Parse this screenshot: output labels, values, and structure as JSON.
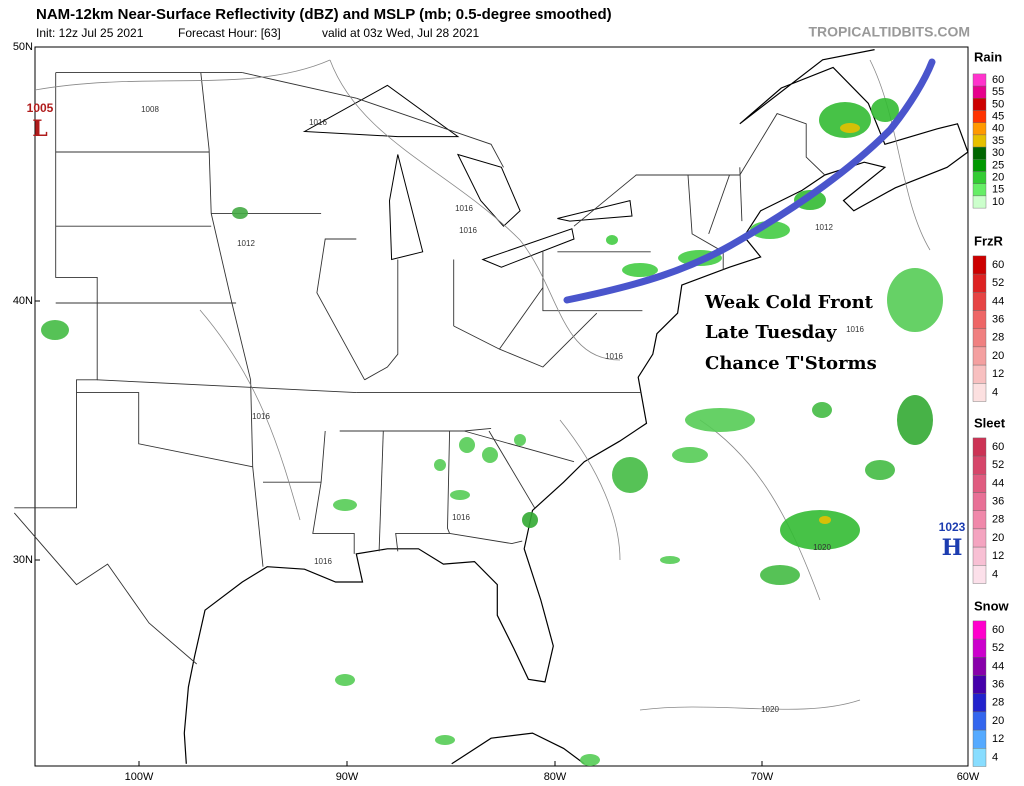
{
  "header": {
    "title": "NAM-12km Near-Surface Reflectivity (dBZ) and MSLP (mb; 0.5-degree smoothed)",
    "init": "Init: 12z Jul 25 2021",
    "forecast_hour": "Forecast Hour: [63]",
    "valid": "valid at 03z Wed, Jul 28 2021",
    "site": "TROPICALTIDBITS.COM"
  },
  "map": {
    "lat_labels": [
      "50N",
      "40N",
      "30N"
    ],
    "lon_labels": [
      "100W",
      "90W",
      "80W",
      "70W",
      "60W"
    ],
    "annotation": [
      "Weak Cold Front",
      "Late Tuesday",
      "Chance T'Storms"
    ],
    "low": {
      "pressure": "1005",
      "label": "L"
    },
    "high": {
      "pressure": "1023",
      "label": "H"
    },
    "isobar_labels": [
      "1008",
      "1016",
      "1012",
      "1016",
      "1016",
      "1016",
      "1016",
      "1016",
      "1016",
      "1012",
      "1016",
      "1020",
      "1020"
    ]
  },
  "legend": [
    {
      "title": "Rain",
      "values": [
        60,
        55,
        50,
        45,
        40,
        35,
        30,
        25,
        20,
        15,
        10
      ],
      "colors": [
        "#ff33cc",
        "#e6008c",
        "#cc0000",
        "#ff3300",
        "#ff9900",
        "#e6c000",
        "#006600",
        "#009900",
        "#33cc33",
        "#66ee66",
        "#ccffcc"
      ]
    },
    {
      "title": "FrzR",
      "values": [
        60,
        52,
        44,
        36,
        28,
        20,
        12,
        4
      ],
      "colors": [
        "#cc0000",
        "#dd2222",
        "#e64444",
        "#ee6666",
        "#f08080",
        "#f4a0a0",
        "#f8c0c0",
        "#fce0e0"
      ]
    },
    {
      "title": "Sleet",
      "values": [
        60,
        52,
        44,
        36,
        28,
        20,
        12,
        4
      ],
      "colors": [
        "#cc3355",
        "#d6466a",
        "#e05c80",
        "#e87096",
        "#f088aa",
        "#f4a4c0",
        "#f8c0d4",
        "#fce0ea"
      ]
    },
    {
      "title": "Snow",
      "values": [
        60,
        52,
        44,
        36,
        28,
        20,
        12,
        4
      ],
      "colors": [
        "#ff00cc",
        "#cc00cc",
        "#8800aa",
        "#4400aa",
        "#2222cc",
        "#3366ee",
        "#55aaff",
        "#88ddff"
      ]
    }
  ]
}
